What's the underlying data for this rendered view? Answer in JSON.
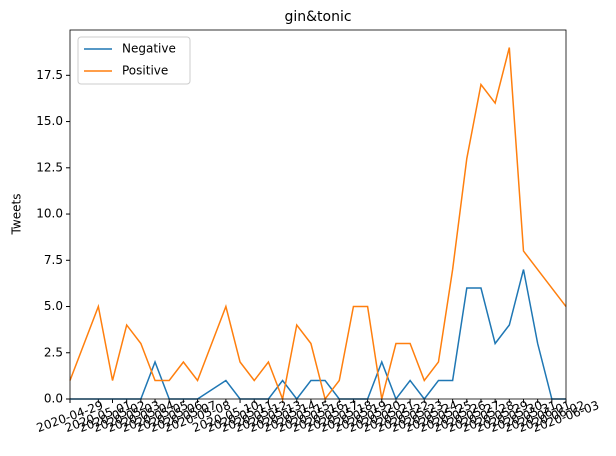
{
  "chart_data": {
    "type": "line",
    "title": "gin&tonic",
    "y_label": "Tweets",
    "x": [
      "2020-04-29",
      "2020-05-01",
      "2020-05-02",
      "2020-05-03",
      "2020-05-04",
      "2020-05-05",
      "2020-05-06",
      "2020-05-07",
      "2020-05-08",
      "2020-05-10",
      "2020-05-11",
      "2020-05-12",
      "2020-05-13",
      "2020-05-14",
      "2020-05-15",
      "2020-05-16",
      "2020-05-17",
      "2020-05-18",
      "2020-05-19",
      "2020-05-20",
      "2020-05-21",
      "2020-05-22",
      "2020-05-23",
      "2020-05-24",
      "2020-05-25",
      "2020-05-26",
      "2020-05-27",
      "2020-05-28",
      "2020-05-29",
      "2020-05-30",
      "2020-05-31",
      "2020-06-01",
      "2020-06-02",
      "2020-06-03"
    ],
    "series": [
      {
        "name": "Negative",
        "color": "#1f77b4",
        "values": [
          0,
          0,
          0,
          0,
          0,
          2,
          0,
          0,
          0,
          1,
          0,
          0,
          0,
          1,
          0,
          1,
          1,
          0,
          0,
          0,
          2,
          0,
          1,
          0,
          1,
          1,
          6,
          6,
          3,
          4,
          7,
          3,
          0,
          0
        ]
      },
      {
        "name": "Positive",
        "color": "#ff7f0e",
        "values": [
          1,
          5,
          1,
          4,
          3,
          1,
          1,
          2,
          1,
          5,
          2,
          1,
          2,
          0,
          4,
          3,
          0,
          1,
          5,
          5,
          0,
          3,
          3,
          1,
          2,
          7,
          13,
          17,
          16,
          19,
          8,
          7,
          6,
          5
        ]
      }
    ],
    "xlim": [
      "2020-04-29",
      "2020-06-03"
    ],
    "xticks": [
      "2020-04-29",
      "2020-05-01",
      "2020-05-02",
      "2020-05-03",
      "2020-05-04",
      "2020-05-05",
      "2020-05-06",
      "2020-05-07",
      "2020-05-08",
      "2020-05-10",
      "2020-05-11",
      "2020-05-12",
      "2020-05-13",
      "2020-05-14",
      "2020-05-15",
      "2020-05-16",
      "2020-05-17",
      "2020-05-18",
      "2020-05-19",
      "2020-05-20",
      "2020-05-21",
      "2020-05-22",
      "2020-05-23",
      "2020-05-24",
      "2020-05-25",
      "2020-05-26",
      "2020-05-27",
      "2020-05-28",
      "2020-05-29",
      "2020-05-30",
      "2020-05-31",
      "2020-06-01",
      "2020-06-02",
      "2020-06-03"
    ],
    "ylim": [
      0,
      19.95
    ],
    "yticks": [
      {
        "value": 0,
        "label": "0.0"
      },
      2.5,
      {
        "value": 5,
        "label": "5.0"
      },
      7.5,
      {
        "value": 10,
        "label": "10.0"
      },
      12.5,
      {
        "value": 15,
        "label": "15.0"
      },
      17.5
    ],
    "legend": "upper left",
    "grid": false
  }
}
